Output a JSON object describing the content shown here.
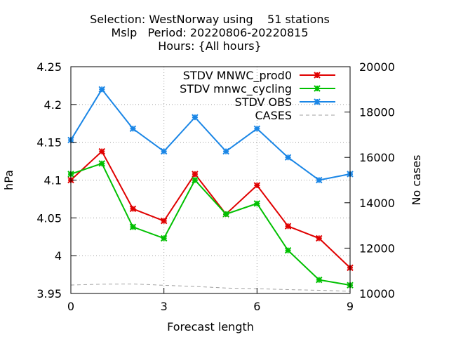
{
  "chart_data": {
    "type": "line",
    "title_lines": [
      "Selection: WestNorway using    51 stations",
      "Mslp   Period: 20220806-20220815",
      "Hours: {All hours}"
    ],
    "xlabel": "Forecast length",
    "ylabel": "hPa",
    "y2label": "No cases",
    "xlim": [
      0,
      9
    ],
    "ylim": [
      3.95,
      4.25
    ],
    "y2lim": [
      10000,
      20000
    ],
    "x_ticks": [
      0,
      3,
      6,
      9
    ],
    "y_ticks": [
      "3.95",
      "4",
      "4.05",
      "4.1",
      "4.15",
      "4.2",
      "4.25"
    ],
    "y2_ticks": [
      "10000",
      "12000",
      "14000",
      "16000",
      "18000",
      "20000"
    ],
    "grid": true,
    "legend_position": "top-right",
    "x": [
      0,
      1,
      2,
      3,
      4,
      5,
      6,
      7,
      8,
      9
    ],
    "series": [
      {
        "name": "STDV MNWC_prod0",
        "color": "#e00000",
        "axis": "y",
        "values": [
          4.1,
          4.138,
          4.062,
          4.046,
          4.108,
          4.055,
          4.093,
          4.039,
          4.023,
          3.984
        ]
      },
      {
        "name": "STDV mnwc_cycling",
        "color": "#00c000",
        "axis": "y",
        "values": [
          4.108,
          4.122,
          4.038,
          4.023,
          4.1,
          4.055,
          4.069,
          4.007,
          3.968,
          3.961
        ]
      },
      {
        "name": "STDV OBS",
        "color": "#1a86e6",
        "axis": "y",
        "values": [
          4.153,
          4.22,
          4.168,
          4.138,
          4.183,
          4.138,
          4.168,
          4.13,
          4.1,
          4.108
        ]
      },
      {
        "name": "CASES",
        "color": "#a0a0a0",
        "axis": "y2",
        "dashed": true,
        "values": [
          10370,
          10410,
          10420,
          10360,
          10310,
          10240,
          10210,
          10170,
          10140,
          10100
        ]
      }
    ]
  }
}
